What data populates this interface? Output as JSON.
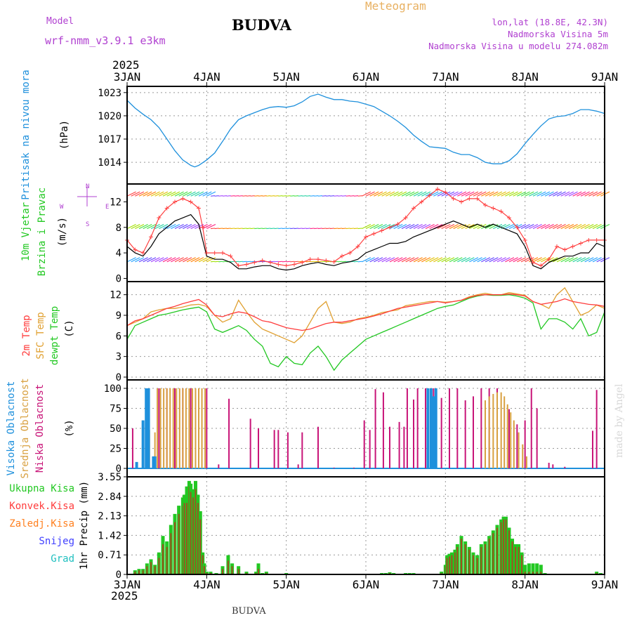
{
  "header": {
    "model_label": "Model",
    "model_name": "wrf-nmm_v3.9.1  e3km",
    "station": "BUDVA",
    "meteogram": "Meteogram",
    "lonlat": "lon,lat (18.8E, 42.3N)",
    "elevation": "Nadmorska Visina 5m",
    "model_elevation": "Nadmorska Visina u modelu 274.082m"
  },
  "footer": {
    "station": "BUDVA",
    "watermark": "made by Angel"
  },
  "colors": {
    "pressure": "#1e90dc",
    "wind_label": "#22c822",
    "wind_unit": "#b040d0",
    "t2m": "#ff3c3c",
    "sfc": "#e0a030",
    "dewpt": "#22c822",
    "high_cloud": "#1e90dc",
    "mid_cloud": "#d8a040",
    "low_cloud": "#c81478",
    "total_precip": "#22c822",
    "conv_precip": "#ff3c3c",
    "frz_precip": "#ff8020",
    "snow": "#4040ff",
    "hail": "#20c0c0"
  },
  "chart_data": [
    {
      "type": "line",
      "id": "pressure",
      "ylabel_name": "Pritisak na nivou mora",
      "ylabel_unit": "(hPa)",
      "ylim": [
        1011.2,
        1023.8
      ],
      "yticks": [
        1014,
        1017,
        1020,
        1023
      ],
      "x_days": [
        3.0,
        3.1,
        3.2,
        3.3,
        3.4,
        3.5,
        3.6,
        3.7,
        3.8,
        3.85,
        3.9,
        4.0,
        4.1,
        4.2,
        4.3,
        4.4,
        4.5,
        4.6,
        4.7,
        4.8,
        4.9,
        5.0,
        5.1,
        5.2,
        5.3,
        5.4,
        5.5,
        5.6,
        5.7,
        5.8,
        5.9,
        6.0,
        6.1,
        6.2,
        6.3,
        6.4,
        6.5,
        6.6,
        6.7,
        6.8,
        6.9,
        7.0,
        7.1,
        7.2,
        7.3,
        7.4,
        7.5,
        7.6,
        7.7,
        7.8,
        7.9,
        8.0,
        8.1,
        8.2,
        8.3,
        8.4,
        8.5,
        8.6,
        8.7,
        8.8,
        8.9,
        9.0
      ],
      "values": [
        1022,
        1021,
        1020.2,
        1019.5,
        1018.5,
        1017,
        1015.5,
        1014.3,
        1013.6,
        1013.4,
        1013.6,
        1014.3,
        1015.2,
        1016.7,
        1018.3,
        1019.5,
        1020,
        1020.4,
        1020.8,
        1021.1,
        1021.2,
        1021.1,
        1021.3,
        1021.8,
        1022.5,
        1022.8,
        1022.4,
        1022.1,
        1022.1,
        1021.9,
        1021.8,
        1021.5,
        1021.2,
        1020.6,
        1020,
        1019.3,
        1018.5,
        1017.5,
        1016.7,
        1016,
        1015.9,
        1015.8,
        1015.3,
        1015,
        1015,
        1014.6,
        1014,
        1013.8,
        1013.8,
        1014.2,
        1015.1,
        1016.4,
        1017.6,
        1018.7,
        1019.6,
        1019.9,
        1020,
        1020.3,
        1020.8,
        1020.8,
        1020.6,
        1020.3
      ]
    },
    {
      "type": "line",
      "id": "wind",
      "ylabel_name": "10m Vjetar",
      "ylabel_name2": "Brzina i Pravac",
      "ylabel_unit": "(m/s)",
      "compass_n": "N",
      "compass_e": "E",
      "compass_w": "W",
      "compass_s": "S",
      "ylim": [
        -0.5,
        14.8
      ],
      "yticks": [
        0,
        4,
        8,
        12
      ],
      "x_days": [
        3.0,
        3.1,
        3.2,
        3.3,
        3.4,
        3.5,
        3.6,
        3.7,
        3.8,
        3.9,
        3.95,
        4.0,
        4.1,
        4.2,
        4.3,
        4.4,
        4.5,
        4.6,
        4.7,
        4.8,
        4.9,
        5.0,
        5.1,
        5.2,
        5.3,
        5.4,
        5.5,
        5.6,
        5.7,
        5.8,
        5.9,
        6.0,
        6.1,
        6.2,
        6.3,
        6.4,
        6.5,
        6.6,
        6.7,
        6.8,
        6.9,
        7.0,
        7.1,
        7.2,
        7.3,
        7.4,
        7.5,
        7.6,
        7.7,
        7.8,
        7.9,
        8.0,
        8.1,
        8.2,
        8.3,
        8.4,
        8.5,
        8.6,
        8.7,
        8.8,
        8.9,
        9.0
      ],
      "speed": [
        5,
        4,
        3.5,
        5,
        7,
        8,
        9,
        9.5,
        10,
        8.5,
        6,
        3.5,
        3,
        3,
        2.5,
        1.5,
        1.5,
        1.8,
        2,
        2,
        1.5,
        1.3,
        1.5,
        2,
        2.3,
        2.5,
        2.2,
        2,
        2.4,
        2.6,
        3,
        4,
        4.5,
        5,
        5.5,
        5.5,
        5.8,
        6.5,
        7,
        7.5,
        8,
        8.5,
        9,
        8.5,
        8,
        8.5,
        8,
        8.5,
        8,
        7.5,
        7,
        5,
        2,
        1.5,
        2.5,
        3,
        3.5,
        3.5,
        4,
        4,
        5.5,
        5
      ],
      "gust": [
        6,
        4.5,
        4,
        6.5,
        9.5,
        11,
        12,
        12.5,
        12,
        11,
        8,
        4,
        4,
        4,
        3.5,
        2,
        2.2,
        2.5,
        2.8,
        2.5,
        2.2,
        2,
        2.2,
        2.5,
        3,
        3,
        2.8,
        2.6,
        3.5,
        4,
        5,
        6.5,
        7,
        7.5,
        8,
        8.5,
        9.5,
        11,
        12,
        13,
        14,
        13.5,
        12.5,
        12,
        12.5,
        12.5,
        11.5,
        11,
        10.5,
        9.5,
        8,
        6,
        2.5,
        2,
        3,
        5,
        4.5,
        5,
        5.5,
        6,
        6,
        6
      ]
    },
    {
      "type": "line",
      "id": "temperature",
      "ylabel_t2m": "2m Temp",
      "ylabel_sfc": "SFC Temp",
      "ylabel_dewpt": "dewpt Temp",
      "ylabel_unit": "(C)",
      "ylim": [
        0,
        13.5
      ],
      "yticks": [
        0,
        3,
        6,
        9,
        12
      ],
      "x_days": [
        3.0,
        3.1,
        3.2,
        3.3,
        3.4,
        3.5,
        3.6,
        3.7,
        3.8,
        3.9,
        4.0,
        4.1,
        4.2,
        4.3,
        4.4,
        4.5,
        4.6,
        4.7,
        4.8,
        4.9,
        5.0,
        5.1,
        5.2,
        5.3,
        5.4,
        5.5,
        5.6,
        5.7,
        5.8,
        5.9,
        6.0,
        6.1,
        6.2,
        6.3,
        6.4,
        6.5,
        6.6,
        6.7,
        6.8,
        6.9,
        7.0,
        7.1,
        7.2,
        7.3,
        7.4,
        7.5,
        7.6,
        7.7,
        7.8,
        7.9,
        8.0,
        8.1,
        8.2,
        8.3,
        8.4,
        8.5,
        8.6,
        8.7,
        8.8,
        8.9,
        9.0
      ],
      "t2m": [
        7.5,
        8.2,
        8.5,
        9,
        9.5,
        10,
        10.3,
        10.7,
        11,
        11.3,
        10.5,
        9,
        8.8,
        9.2,
        9.5,
        9.3,
        8.8,
        8.2,
        8,
        7.6,
        7.2,
        7,
        6.8,
        7,
        7.4,
        7.8,
        8,
        8,
        8.2,
        8.4,
        8.6,
        8.9,
        9.2,
        9.6,
        10,
        10.2,
        10.4,
        10.6,
        10.8,
        11,
        10.8,
        11,
        11.2,
        11.6,
        11.9,
        12,
        12,
        12,
        12.1,
        12,
        11.8,
        11,
        10.6,
        10.8,
        11,
        11.4,
        11,
        10.8,
        10.6,
        10.5,
        10.3
      ],
      "sfc": [
        7.5,
        8,
        8.5,
        9.5,
        9.8,
        10,
        10,
        10.2,
        10.5,
        10.6,
        10.3,
        9,
        8,
        8.5,
        11.2,
        9.5,
        8,
        7,
        6.5,
        6,
        5.5,
        5,
        6,
        8,
        10,
        11,
        8,
        7.8,
        8,
        8.5,
        8.7,
        9,
        9.4,
        9.6,
        9.8,
        10.4,
        10.6,
        10.8,
        11,
        11,
        10.9,
        11,
        11.2,
        11.7,
        12,
        12.2,
        12,
        12,
        12.3,
        12.1,
        11.9,
        11,
        10.6,
        10,
        12,
        13,
        11,
        9,
        9.5,
        10.5,
        10
      ],
      "dewpt": [
        5.5,
        7.5,
        8,
        8.5,
        9,
        9.2,
        9.5,
        9.8,
        10,
        10.2,
        9.5,
        7,
        6.5,
        7,
        7.5,
        6.8,
        5.5,
        4.5,
        2,
        1.5,
        3,
        2,
        1.8,
        3.5,
        4.5,
        3,
        1,
        2.5,
        3.5,
        4.5,
        5.5,
        6,
        6.5,
        7,
        7.5,
        8,
        8.5,
        9,
        9.5,
        10,
        10.3,
        10.5,
        11,
        11.5,
        11.8,
        12,
        11.9,
        11.9,
        12,
        11.8,
        11.5,
        10.8,
        7,
        8.5,
        8.5,
        8,
        7,
        8.5,
        6,
        6.5,
        9.5
      ]
    },
    {
      "type": "bar",
      "id": "clouds",
      "ylabel_high": "Visoka Oblacnost",
      "ylabel_mid": "Srednja Oblacnost",
      "ylabel_low": "Niska Oblacnost",
      "ylabel_unit": "(%)",
      "ylim": [
        0,
        100
      ],
      "yticks": [
        0,
        25,
        50,
        75,
        100
      ],
      "high": [
        [
          3.12,
          8
        ],
        [
          3.2,
          60
        ],
        [
          3.24,
          100
        ],
        [
          3.27,
          100
        ],
        [
          3.33,
          15
        ],
        [
          3.35,
          15
        ],
        [
          6.78,
          100
        ],
        [
          6.82,
          100
        ],
        [
          6.85,
          90
        ],
        [
          6.88,
          100
        ]
      ],
      "mid": [
        [
          3.28,
          48
        ],
        [
          3.35,
          45
        ],
        [
          3.38,
          100
        ],
        [
          3.42,
          100
        ],
        [
          3.46,
          100
        ],
        [
          3.5,
          100
        ],
        [
          3.54,
          100
        ],
        [
          3.58,
          100
        ],
        [
          3.62,
          100
        ],
        [
          3.66,
          100
        ],
        [
          3.7,
          100
        ],
        [
          3.74,
          100
        ],
        [
          3.78,
          100
        ],
        [
          3.82,
          100
        ],
        [
          3.86,
          100
        ],
        [
          3.9,
          100
        ],
        [
          3.94,
          100
        ],
        [
          3.98,
          100
        ],
        [
          7.5,
          85
        ],
        [
          7.55,
          90
        ],
        [
          7.6,
          93
        ],
        [
          7.65,
          95
        ],
        [
          7.7,
          95
        ],
        [
          7.74,
          90
        ],
        [
          7.78,
          80
        ],
        [
          7.82,
          70
        ],
        [
          7.86,
          60
        ],
        [
          7.92,
          45
        ],
        [
          7.97,
          30
        ],
        [
          8.02,
          15
        ]
      ],
      "low": [
        [
          3.07,
          50
        ],
        [
          3.4,
          100
        ],
        [
          3.5,
          100
        ],
        [
          3.6,
          100
        ],
        [
          3.7,
          100
        ],
        [
          3.8,
          100
        ],
        [
          3.9,
          100
        ],
        [
          4.0,
          100
        ],
        [
          4.28,
          87
        ],
        [
          4.15,
          5
        ],
        [
          4.55,
          62
        ],
        [
          4.65,
          50
        ],
        [
          4.85,
          48
        ],
        [
          4.9,
          48
        ],
        [
          5.02,
          45
        ],
        [
          5.15,
          5
        ],
        [
          5.2,
          45
        ],
        [
          5.4,
          52
        ],
        [
          5.6,
          1
        ],
        [
          5.85,
          1
        ],
        [
          5.98,
          60
        ],
        [
          6.05,
          48
        ],
        [
          6.12,
          99
        ],
        [
          6.22,
          95
        ],
        [
          6.3,
          52
        ],
        [
          6.42,
          58
        ],
        [
          6.48,
          52
        ],
        [
          6.52,
          100
        ],
        [
          6.6,
          86
        ],
        [
          6.65,
          100
        ],
        [
          6.75,
          100
        ],
        [
          6.85,
          100
        ],
        [
          6.95,
          88
        ],
        [
          7.05,
          100
        ],
        [
          7.15,
          100
        ],
        [
          7.25,
          85
        ],
        [
          7.35,
          90
        ],
        [
          7.45,
          100
        ],
        [
          7.55,
          100
        ],
        [
          7.65,
          100
        ],
        [
          7.8,
          74
        ],
        [
          7.9,
          55
        ],
        [
          8.0,
          60
        ],
        [
          8.08,
          100
        ],
        [
          8.15,
          75
        ],
        [
          8.3,
          7
        ],
        [
          8.35,
          5
        ],
        [
          8.5,
          2
        ],
        [
          8.85,
          47
        ],
        [
          8.9,
          98
        ]
      ]
    },
    {
      "type": "bar",
      "id": "precip",
      "ylabel_unit": "1hr Precip (mm)",
      "legend_total": "Ukupna Kisa",
      "legend_conv": "Konvek.Kisa",
      "legend_frz": "Zaledj.Kisa",
      "legend_snow": "Snijeg",
      "legend_hail": "Grad",
      "ylim": [
        0,
        3.55
      ],
      "yticks": [
        0,
        0.71,
        1.42,
        2.13,
        2.84,
        3.55
      ],
      "ytick_labels": [
        "0",
        "0.71",
        "1.42",
        "2.13",
        "2.84",
        "3.55"
      ],
      "x_days": [
        3.1,
        3.15,
        3.2,
        3.25,
        3.3,
        3.35,
        3.4,
        3.45,
        3.5,
        3.55,
        3.6,
        3.65,
        3.7,
        3.72,
        3.75,
        3.78,
        3.8,
        3.83,
        3.86,
        3.89,
        3.92,
        3.95,
        3.97,
        4.0,
        4.05,
        4.12,
        4.2,
        4.27,
        4.32,
        4.4,
        4.5,
        4.62,
        4.65,
        4.7,
        4.75,
        5.0,
        6.2,
        6.25,
        6.3,
        6.35,
        6.5,
        6.55,
        6.6,
        6.95,
        7.0,
        7.02,
        7.05,
        7.08,
        7.12,
        7.15,
        7.2,
        7.25,
        7.3,
        7.35,
        7.4,
        7.45,
        7.5,
        7.55,
        7.6,
        7.65,
        7.7,
        7.73,
        7.76,
        7.8,
        7.84,
        7.88,
        7.92,
        7.96,
        8.0,
        8.05,
        8.1,
        8.15,
        8.2,
        8.25,
        8.9,
        8.95
      ],
      "total": [
        0.15,
        0.2,
        0.2,
        0.4,
        0.55,
        0.35,
        0.8,
        1.4,
        1.2,
        1.8,
        2.2,
        2.5,
        2.8,
        2.9,
        3.2,
        3.4,
        3.3,
        3.1,
        3.4,
        2.9,
        2.3,
        0.8,
        0.4,
        0.1,
        0.1,
        0.05,
        0.3,
        0.7,
        0.4,
        0.3,
        0.1,
        0.1,
        0.4,
        0.05,
        0.1,
        0.05,
        0.05,
        0.05,
        0.08,
        0.05,
        0.05,
        0.05,
        0.05,
        0.1,
        0.35,
        0.7,
        0.75,
        0.8,
        0.9,
        1.1,
        1.4,
        1.2,
        1.0,
        0.8,
        0.7,
        1.1,
        1.2,
        1.4,
        1.6,
        1.8,
        2.0,
        2.1,
        2.1,
        1.7,
        1.3,
        1.1,
        1.1,
        0.8,
        0.35,
        0.4,
        0.4,
        0.4,
        0.35,
        0.05,
        0.1,
        0.05
      ],
      "conv": [
        0.1,
        0.15,
        0.15,
        0.3,
        0.45,
        0.3,
        0.6,
        1.1,
        1.0,
        1.5,
        1.9,
        2.2,
        2.5,
        2.6,
        2.6,
        3.2,
        3.0,
        2.8,
        3.1,
        2.6,
        2.0,
        0.7,
        0.3,
        0.05,
        0.05,
        0.02,
        0.2,
        0.5,
        0.3,
        0.2,
        0.05,
        0.05,
        0.2,
        0.02,
        0.05,
        0.02,
        0.02,
        0.02,
        0.05,
        0.02,
        0.02,
        0.02,
        0.02,
        0.05,
        0.3,
        0.6,
        0.65,
        0.7,
        0.8,
        1.0,
        1.3,
        1.1,
        0.9,
        0.7,
        0.6,
        1.0,
        1.1,
        1.3,
        1.5,
        1.7,
        1.9,
        2.0,
        2.0,
        1.6,
        1.2,
        1.0,
        1.0,
        0.7,
        0.1,
        0.1,
        0.1,
        0.1,
        0.1,
        0.02,
        0.05,
        0.02
      ]
    }
  ],
  "x_axis": {
    "year_top": "2025",
    "year_bottom": "2025",
    "day_labels": [
      "3JAN",
      "4JAN",
      "5JAN",
      "6JAN",
      "7JAN",
      "8JAN",
      "9JAN"
    ]
  }
}
